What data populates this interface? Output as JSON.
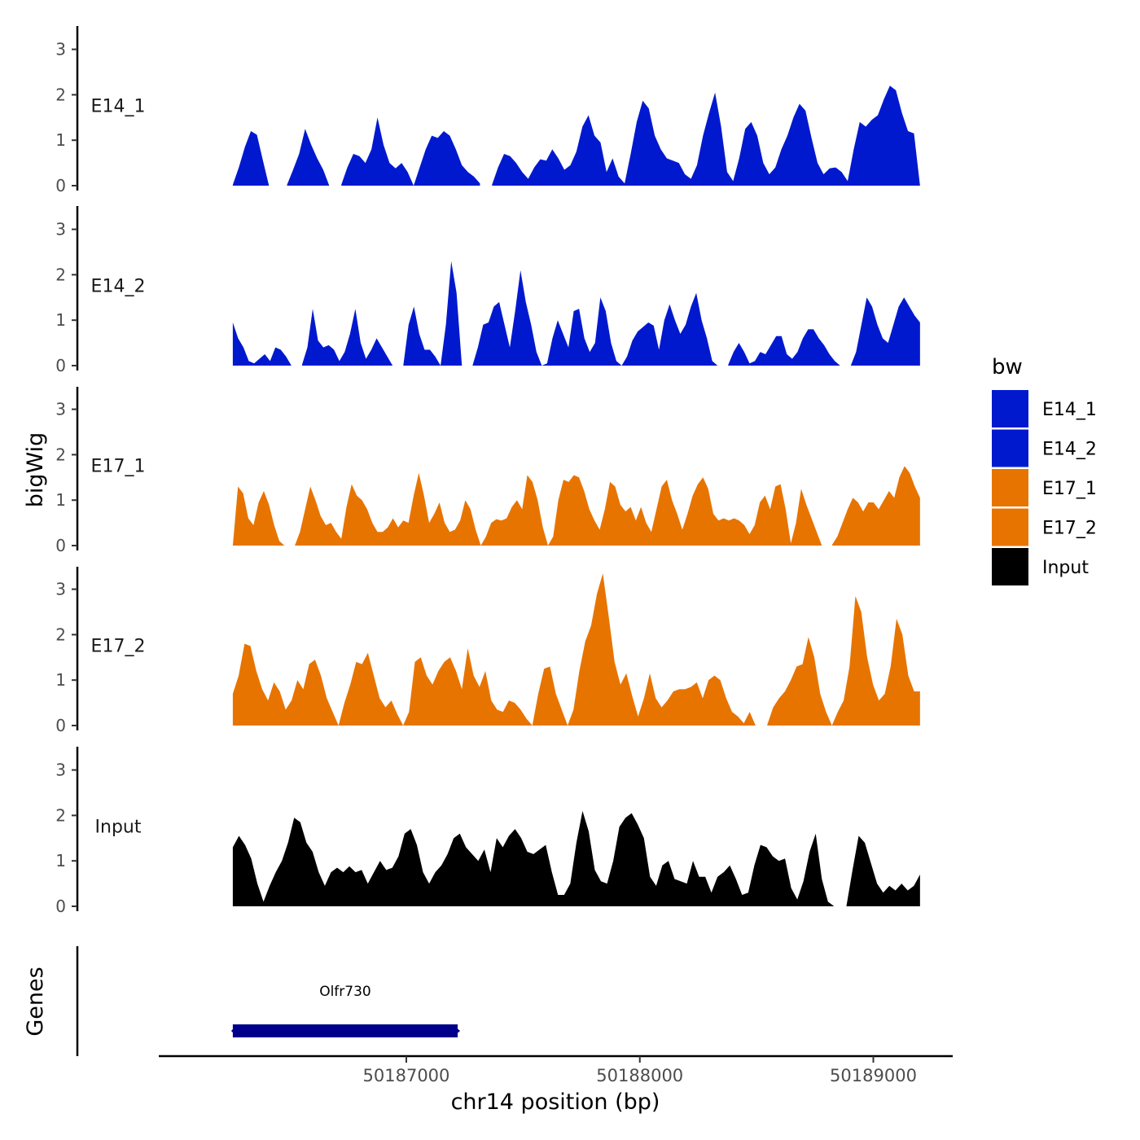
{
  "chart_data": {
    "type": "area",
    "title": "",
    "xlabel": "chr14 position (bp)",
    "ylabel": "bigWig",
    "genes_label": "Genes",
    "x_range": [
      50186257,
      50189200
    ],
    "x_axis_limits": [
      50185940,
      50189340
    ],
    "x_ticks": [
      {
        "value": 50187000,
        "label": "50187000"
      },
      {
        "value": 50188000,
        "label": "50188000"
      },
      {
        "value": 50189000,
        "label": "50189000"
      }
    ],
    "ylim": [
      0,
      3.5
    ],
    "y_ticks": [
      {
        "value": 0,
        "label": "0"
      },
      {
        "value": 1,
        "label": "1"
      },
      {
        "value": 2,
        "label": "2"
      },
      {
        "value": 3,
        "label": "3"
      }
    ],
    "legend": {
      "title": "bw",
      "position": "right",
      "entries": [
        {
          "label": "E14_1",
          "color": "#0019CF"
        },
        {
          "label": "E14_2",
          "color": "#0019CF"
        },
        {
          "label": "E17_1",
          "color": "#E87400"
        },
        {
          "label": "E17_2",
          "color": "#E87400"
        },
        {
          "label": "Input",
          "color": "#000000"
        }
      ]
    },
    "series": [
      {
        "name": "E14_1",
        "label": "E14_1",
        "color": "#0019CF",
        "values": [
          0.02,
          0.4,
          0.85,
          1.2,
          1.12,
          0.55,
          0.0,
          null,
          null,
          0.02,
          0.35,
          0.7,
          1.25,
          0.9,
          0.6,
          0.35,
          0.0,
          null,
          0.02,
          0.4,
          0.7,
          0.65,
          0.5,
          0.8,
          1.5,
          0.9,
          0.5,
          0.38,
          0.5,
          0.3,
          0.0,
          0.4,
          0.8,
          1.1,
          1.05,
          1.2,
          1.1,
          0.8,
          0.45,
          0.3,
          0.2,
          0.05,
          null,
          0.02,
          0.4,
          0.7,
          0.65,
          0.5,
          0.3,
          0.15,
          0.4,
          0.58,
          0.55,
          0.8,
          0.6,
          0.35,
          0.45,
          0.75,
          1.3,
          1.55,
          1.1,
          0.95,
          0.3,
          0.6,
          0.2,
          0.05,
          0.7,
          1.4,
          1.87,
          1.7,
          1.1,
          0.8,
          0.6,
          0.55,
          0.5,
          0.25,
          0.15,
          0.45,
          1.1,
          1.6,
          2.05,
          1.3,
          0.3,
          0.1,
          0.6,
          1.25,
          1.4,
          1.1,
          0.5,
          0.25,
          0.4,
          0.8,
          1.1,
          1.5,
          1.8,
          1.65,
          1.05,
          0.5,
          0.25,
          0.38,
          0.4,
          0.3,
          0.1,
          0.8,
          1.4,
          1.3,
          1.45,
          1.55,
          1.9,
          2.2,
          2.1,
          1.6,
          1.2,
          1.15,
          0.0
        ]
      },
      {
        "name": "E14_2",
        "label": "E14_2",
        "color": "#0019CF",
        "values": [
          0.95,
          0.6,
          0.4,
          0.1,
          0.05,
          0.15,
          0.25,
          0.1,
          0.4,
          0.35,
          0.2,
          0.0,
          null,
          0.02,
          0.4,
          1.25,
          0.55,
          0.4,
          0.45,
          0.35,
          0.1,
          0.3,
          0.7,
          1.25,
          0.5,
          0.15,
          0.35,
          0.6,
          0.4,
          0.2,
          0.0,
          null,
          0.0,
          0.9,
          1.3,
          0.7,
          0.35,
          0.35,
          0.2,
          0.0,
          0.9,
          2.3,
          1.6,
          0.0,
          null,
          0.0,
          0.4,
          0.9,
          0.95,
          1.3,
          1.4,
          0.9,
          0.4,
          1.2,
          2.1,
          1.4,
          0.9,
          0.3,
          0.0,
          0.05,
          0.6,
          1.0,
          0.7,
          0.4,
          1.2,
          1.25,
          0.6,
          0.3,
          0.5,
          1.5,
          1.2,
          0.5,
          0.1,
          0.0,
          0.2,
          0.55,
          0.75,
          0.85,
          0.95,
          0.88,
          0.35,
          1.0,
          1.35,
          1.0,
          0.7,
          0.9,
          1.3,
          1.6,
          1.0,
          0.6,
          0.1,
          0.0,
          null,
          0.02,
          0.3,
          0.5,
          0.3,
          0.05,
          0.1,
          0.3,
          0.25,
          0.45,
          0.65,
          0.65,
          0.25,
          0.15,
          0.3,
          0.6,
          0.8,
          0.8,
          0.6,
          0.45,
          0.25,
          0.1,
          0.0,
          null,
          0.0,
          0.3,
          0.9,
          1.5,
          1.3,
          0.9,
          0.6,
          0.5,
          0.9,
          1.3,
          1.5,
          1.3,
          1.1,
          0.95
        ]
      },
      {
        "name": "E17_1",
        "label": "E17_1",
        "color": "#E87400",
        "values": [
          0.0,
          1.3,
          1.15,
          0.6,
          0.45,
          0.95,
          1.2,
          0.9,
          0.45,
          0.1,
          0.0,
          null,
          0.0,
          0.3,
          0.8,
          1.3,
          1.0,
          0.65,
          0.45,
          0.5,
          0.3,
          0.15,
          0.85,
          1.35,
          1.1,
          1.0,
          0.8,
          0.5,
          0.3,
          0.3,
          0.4,
          0.6,
          0.4,
          0.55,
          0.5,
          1.1,
          1.6,
          1.1,
          0.5,
          0.7,
          0.95,
          0.5,
          0.3,
          0.35,
          0.55,
          1.0,
          0.8,
          0.35,
          0.0,
          0.2,
          0.5,
          0.58,
          0.55,
          0.6,
          0.85,
          1.0,
          0.8,
          1.55,
          1.4,
          1.0,
          0.4,
          0.0,
          0.2,
          1.0,
          1.45,
          1.4,
          1.55,
          1.5,
          1.2,
          0.8,
          0.55,
          0.35,
          0.8,
          1.4,
          1.3,
          0.9,
          0.75,
          0.85,
          0.55,
          0.85,
          0.5,
          0.3,
          0.8,
          1.3,
          1.45,
          1.0,
          0.7,
          0.35,
          0.7,
          1.1,
          1.35,
          1.5,
          1.25,
          0.7,
          0.55,
          0.6,
          0.55,
          0.6,
          0.55,
          0.45,
          0.25,
          0.45,
          0.95,
          1.1,
          0.8,
          1.3,
          1.35,
          0.8,
          0.05,
          0.5,
          1.25,
          0.9,
          0.6,
          0.3,
          0.0,
          null,
          0.02,
          0.2,
          0.5,
          0.8,
          1.05,
          0.95,
          0.75,
          0.95,
          0.95,
          0.8,
          1.0,
          1.2,
          1.05,
          1.5,
          1.75,
          1.6,
          1.3,
          1.05
        ]
      },
      {
        "name": "E17_2",
        "label": "E17_2",
        "color": "#E87400",
        "values": [
          0.7,
          1.1,
          1.8,
          1.75,
          1.2,
          0.8,
          0.55,
          0.95,
          0.75,
          0.35,
          0.55,
          1.0,
          0.8,
          1.35,
          1.45,
          1.1,
          0.6,
          0.3,
          0.0,
          0.5,
          0.9,
          1.4,
          1.35,
          1.6,
          1.1,
          0.6,
          0.4,
          0.55,
          0.25,
          0.0,
          0.3,
          1.4,
          1.5,
          1.1,
          0.9,
          1.2,
          1.4,
          1.5,
          1.2,
          0.8,
          1.7,
          1.1,
          0.85,
          1.2,
          0.55,
          0.35,
          0.3,
          0.55,
          0.5,
          0.35,
          0.15,
          0.0,
          0.7,
          1.25,
          1.3,
          0.7,
          0.35,
          0.0,
          0.35,
          1.2,
          1.85,
          2.2,
          2.9,
          3.35,
          2.4,
          1.4,
          0.9,
          1.15,
          0.65,
          0.2,
          0.6,
          1.15,
          0.6,
          0.4,
          0.55,
          0.75,
          0.8,
          0.8,
          0.85,
          0.95,
          0.6,
          1.0,
          1.1,
          1.0,
          0.6,
          0.3,
          0.2,
          0.05,
          0.3,
          0.0,
          null,
          0.02,
          0.4,
          0.6,
          0.75,
          1.0,
          1.3,
          1.35,
          1.95,
          1.5,
          0.7,
          0.3,
          0.0,
          0.3,
          0.55,
          1.3,
          2.85,
          2.5,
          1.5,
          0.9,
          0.55,
          0.7,
          1.3,
          2.35,
          2.0,
          1.1,
          0.75,
          0.75
        ]
      },
      {
        "name": "Input",
        "label": "Input",
        "color": "#000000",
        "values": [
          1.3,
          1.55,
          1.35,
          1.05,
          0.5,
          0.1,
          0.45,
          0.75,
          1.0,
          1.4,
          1.95,
          1.85,
          1.4,
          1.2,
          0.75,
          0.45,
          0.75,
          0.85,
          0.75,
          0.88,
          0.75,
          0.8,
          0.5,
          0.75,
          1.0,
          0.8,
          0.85,
          1.1,
          1.6,
          1.7,
          1.35,
          0.75,
          0.5,
          0.75,
          0.9,
          1.15,
          1.5,
          1.6,
          1.3,
          1.15,
          1.0,
          1.25,
          0.75,
          1.5,
          1.3,
          1.55,
          1.7,
          1.5,
          1.2,
          1.15,
          1.25,
          1.35,
          0.75,
          0.25,
          0.25,
          0.5,
          1.4,
          2.1,
          1.65,
          0.8,
          0.55,
          0.5,
          1.0,
          1.75,
          1.95,
          2.05,
          1.8,
          1.5,
          0.65,
          0.45,
          0.9,
          1.0,
          0.6,
          0.55,
          0.5,
          1.0,
          0.65,
          0.65,
          0.3,
          0.65,
          0.75,
          0.9,
          0.6,
          0.25,
          0.3,
          0.9,
          1.35,
          1.3,
          1.1,
          1.0,
          1.05,
          0.4,
          0.15,
          0.55,
          1.2,
          1.6,
          0.6,
          0.1,
          0.0,
          null,
          0.0,
          0.8,
          1.55,
          1.4,
          0.95,
          0.5,
          0.3,
          0.45,
          0.35,
          0.5,
          0.35,
          0.45,
          0.7
        ]
      }
    ],
    "gene_track": {
      "genes": [
        {
          "name": "Olfr730",
          "start": 50186257,
          "end": 50187220,
          "strand": "+",
          "color": "#00008B"
        }
      ]
    }
  }
}
